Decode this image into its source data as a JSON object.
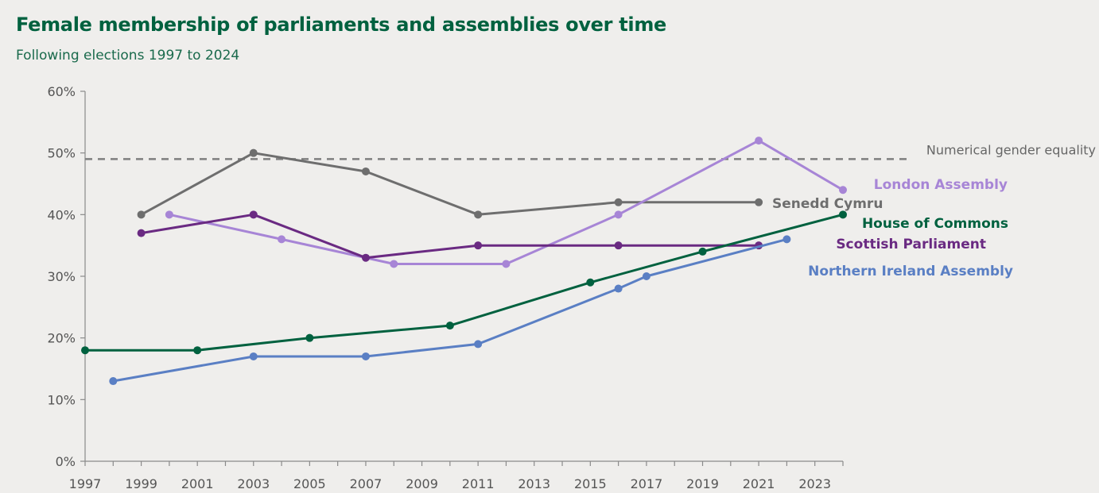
{
  "chart_data": {
    "type": "line",
    "title": "Female membership of parliaments and assemblies over time",
    "subtitle": "Following elections 1997 to 2024",
    "ylim": [
      0,
      60
    ],
    "y_ticks": [
      "0%",
      "10%",
      "20%",
      "30%",
      "40%",
      "50%",
      "60%"
    ],
    "y_tick_values": [
      0,
      10,
      20,
      30,
      40,
      50,
      60
    ],
    "xlim": [
      1997,
      2024
    ],
    "x_ticks": [
      "1997",
      "1999",
      "2001",
      "2003",
      "2005",
      "2007",
      "2009",
      "2011",
      "2013",
      "2015",
      "2017",
      "2019",
      "2021",
      "2023"
    ],
    "x_tick_values": [
      1997,
      1999,
      2001,
      2003,
      2005,
      2007,
      2009,
      2011,
      2013,
      2015,
      2017,
      2019,
      2021,
      2023
    ],
    "grid": false,
    "reference_line": {
      "label": "Numerical gender equality",
      "value": 49,
      "color": "#7f7f7f"
    },
    "series": [
      {
        "name": "Senedd Cymru",
        "color": "#6e6e6e",
        "label_color": "#6e6e6e",
        "x": [
          1999,
          2003,
          2007,
          2011,
          2016,
          2021
        ],
        "y": [
          40,
          50,
          47,
          40,
          42,
          42
        ]
      },
      {
        "name": "London Assembly",
        "color": "#a785d6",
        "label_color": "#a785d6",
        "x": [
          2000,
          2004,
          2008,
          2012,
          2016,
          2021,
          2024
        ],
        "y": [
          40,
          36,
          32,
          32,
          40,
          52,
          44
        ]
      },
      {
        "name": "Scottish Parliament",
        "color": "#6a2a82",
        "label_color": "#6a2a82",
        "x": [
          1999,
          2003,
          2007,
          2011,
          2016,
          2021
        ],
        "y": [
          37,
          40,
          33,
          35,
          35,
          35
        ]
      },
      {
        "name": "House of Commons",
        "color": "#00613f",
        "label_color": "#00613f",
        "x": [
          1997,
          2001,
          2005,
          2010,
          2015,
          2019,
          2024
        ],
        "y": [
          18,
          18,
          20,
          22,
          29,
          34,
          40
        ]
      },
      {
        "name": "Northern Ireland Assembly",
        "color": "#5a7fc4",
        "label_color": "#5a7fc4",
        "x": [
          1998,
          2003,
          2007,
          2011,
          2016,
          2017,
          2022
        ],
        "y": [
          13,
          17,
          17,
          19,
          28,
          30,
          36
        ]
      }
    ]
  }
}
